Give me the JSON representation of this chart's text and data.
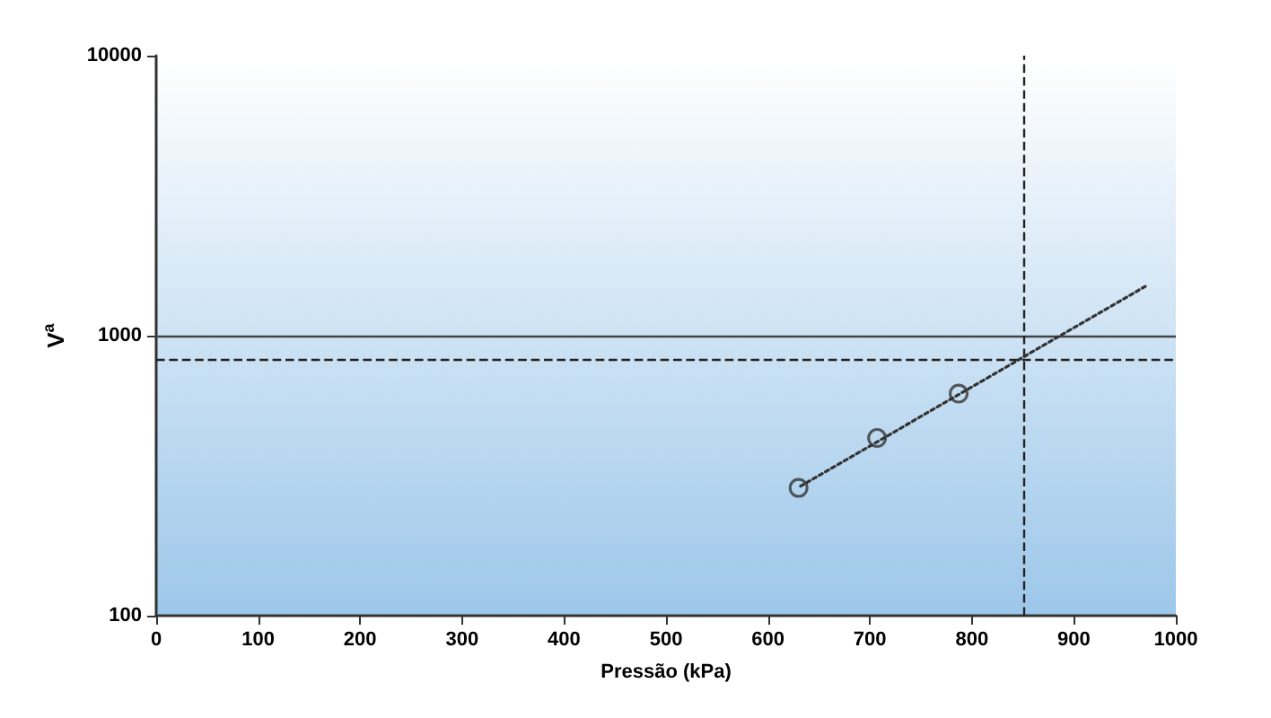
{
  "chart_data": {
    "type": "scatter",
    "xlabel": "Pressão (kPa)",
    "ylabel": "V$^{a}$",
    "xlim": [
      0,
      1000
    ],
    "xticks": [
      0,
      100,
      200,
      300,
      400,
      500,
      600,
      700,
      800,
      900,
      1000
    ],
    "ylim": [
      100,
      10000
    ],
    "yticks": [
      100,
      1000,
      10000
    ],
    "log": "y",
    "grid": false,
    "marker": "circle",
    "series": [
      {
        "type": "scatter",
        "color": "#333333",
        "x": [
          630,
          707,
          787
        ],
        "values": [
          286,
          431,
          621
        ]
      },
      {
        "type": "line",
        "color": "#333333",
        "line_style": "dotted",
        "marker": "none",
        "x": [
          632,
          970
        ],
        "values": [
          290,
          1500
        ]
      }
    ],
    "ref_lines": [
      {
        "axis": "y",
        "value": 1000,
        "color": "#444444",
        "line_style": "solid"
      },
      {
        "axis": "y",
        "value": 820,
        "color": "#222222",
        "line_style": "dashed"
      },
      {
        "axis": "x",
        "value": 850,
        "color": "#222222",
        "line_style": "dashed"
      }
    ]
  }
}
